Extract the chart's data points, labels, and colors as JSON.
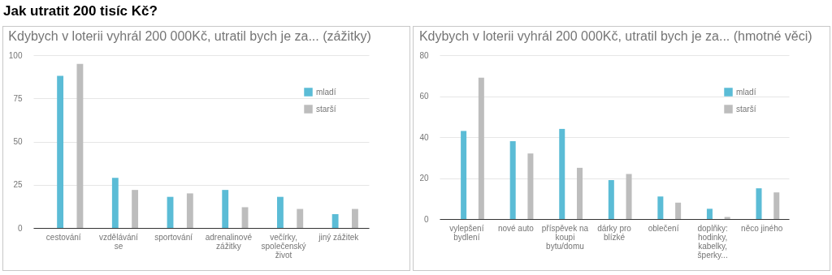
{
  "chart_data": [
    {
      "type": "other",
      "title": "Jak utratit 200 tisíc Kč?"
    },
    {
      "type": "bar",
      "title": "Kdybych v loterii vyhrál 200 000Kč, utratil bych je za... (zážitky)",
      "categories": [
        "cestování",
        "vzdělávání se",
        "sportování",
        "adrenalinové zážitky",
        "večírky, společenský život",
        "jiný zážitek"
      ],
      "series": [
        {
          "name": "mladí",
          "color": "#5bbcd6",
          "values": [
            88,
            29,
            18,
            22,
            18,
            8
          ]
        },
        {
          "name": "starší",
          "color": "#bdbdbd",
          "values": [
            95,
            22,
            20,
            12,
            11,
            11
          ]
        }
      ],
      "ylim": [
        0,
        100
      ],
      "yticks": [
        0,
        25,
        50,
        75,
        100
      ],
      "grid": "y",
      "legend": "top right"
    },
    {
      "type": "bar",
      "title": "Kdybych v loterii vyhrál 200 000Kč, utratil bych je za... (hmotné věci)",
      "categories": [
        "vylepšení bydlení",
        "nové auto",
        "příspěvek na koupi bytu/domu",
        "dárky pro blízké",
        "oblečení",
        "doplňky: hodinky, kabelky, šperky...",
        "něco jiného"
      ],
      "series": [
        {
          "name": "mladí",
          "color": "#5bbcd6",
          "values": [
            43,
            38,
            44,
            19,
            11,
            5,
            15
          ]
        },
        {
          "name": "starší",
          "color": "#bdbdbd",
          "values": [
            69,
            32,
            25,
            22,
            8,
            1,
            13
          ]
        }
      ],
      "ylim": [
        0,
        80
      ],
      "yticks": [
        0,
        20,
        40,
        60,
        80
      ],
      "grid": "y",
      "legend": "top right"
    }
  ]
}
